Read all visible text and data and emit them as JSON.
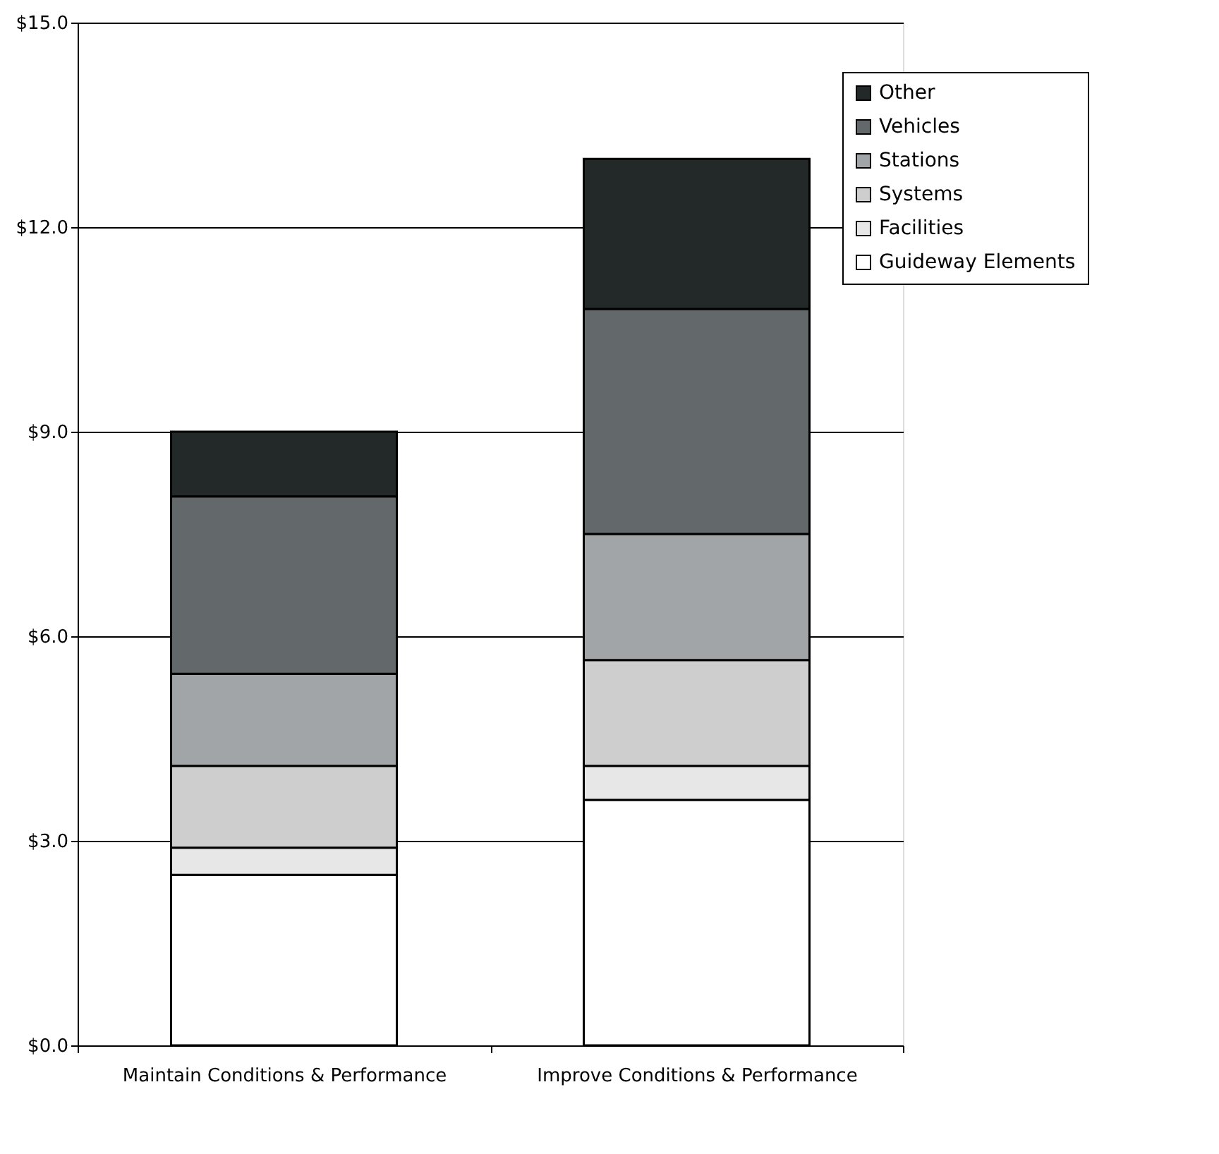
{
  "chart_data": {
    "type": "bar",
    "stacked": true,
    "categories": [
      "Maintain Conditions & Performance",
      "Improve Conditions & Performance"
    ],
    "series": [
      {
        "name": "Guideway Elements",
        "color": "#ffffff",
        "values": [
          2.5,
          3.6
        ]
      },
      {
        "name": "Facilities",
        "color": "#e6e7e6",
        "values": [
          0.4,
          0.5
        ]
      },
      {
        "name": "Systems",
        "color": "#cdcecd",
        "values": [
          1.2,
          1.55
        ]
      },
      {
        "name": "Stations",
        "color": "#a2a5a7",
        "values": [
          1.35,
          1.85
        ]
      },
      {
        "name": "Vehicles",
        "color": "#63686a",
        "values": [
          2.6,
          3.3
        ]
      },
      {
        "name": "Other",
        "color": "#232829",
        "values": [
          0.95,
          2.2
        ]
      }
    ],
    "ylim": [
      0,
      15
    ],
    "yticks": [
      {
        "value": 0,
        "label": "$0.0"
      },
      {
        "value": 3,
        "label": "$3.0"
      },
      {
        "value": 6,
        "label": "$6.0"
      },
      {
        "value": 9,
        "label": "$9.0"
      },
      {
        "value": 12,
        "label": "$12.0"
      },
      {
        "value": 15,
        "label": "$15.0"
      }
    ],
    "grid": "y",
    "legend": "top right"
  }
}
